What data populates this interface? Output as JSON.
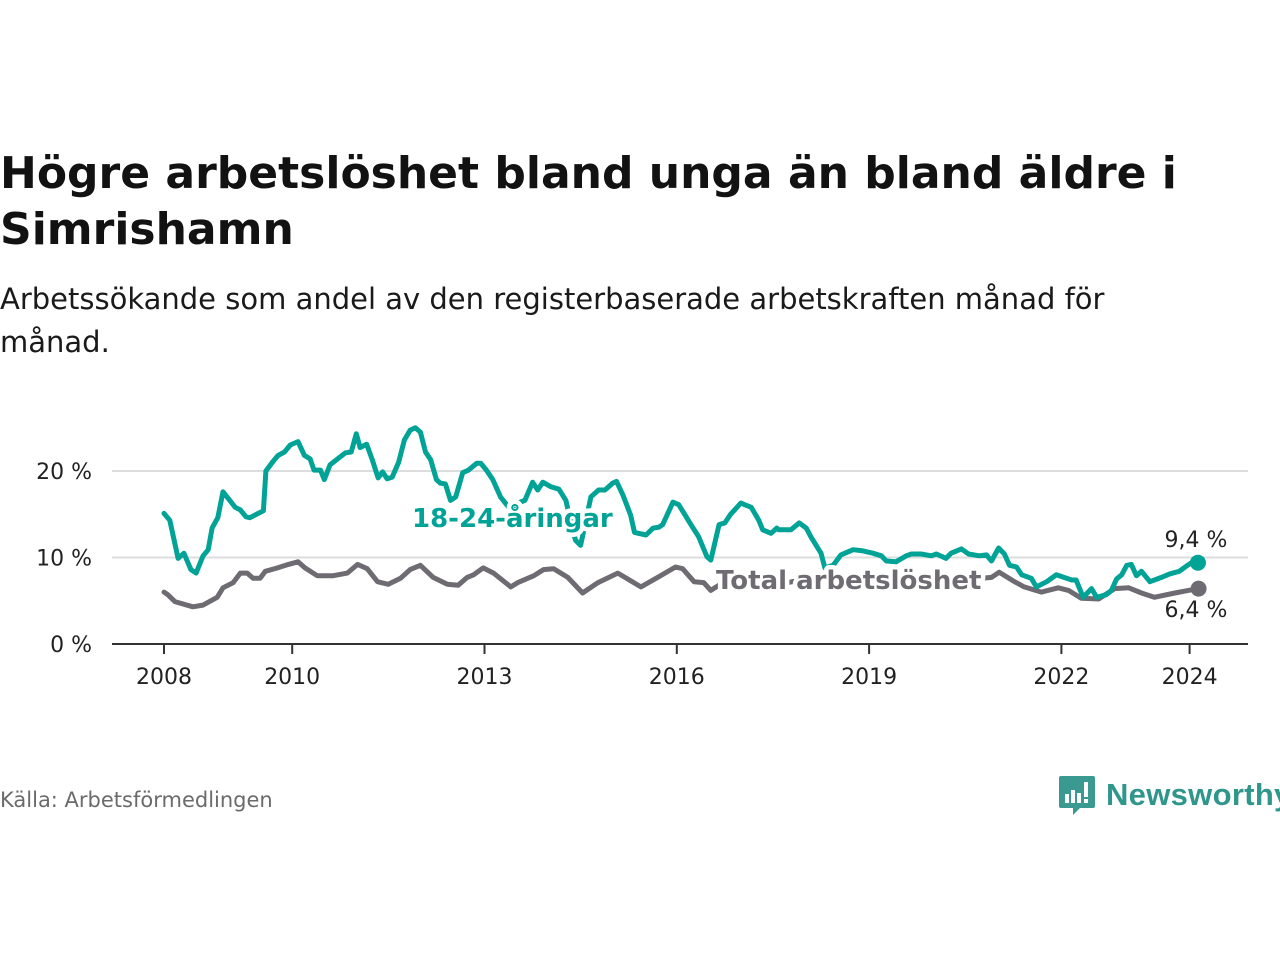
{
  "title": "Högre arbetslöshet bland unga än bland äldre i Simrishamn",
  "subtitle": "Arbetssökande som andel av den registerbaserade arbetskraften månad för månad.",
  "source": "Källa: Arbetsförmedlingen",
  "logo": {
    "text": "Newsworthy"
  },
  "colors": {
    "youth": "#00a396",
    "total": "#6e6b73",
    "grid": "#dddddd",
    "axis": "#333333"
  },
  "chart_data": {
    "type": "line",
    "title": "Högre arbetslöshet bland unga än bland äldre i Simrishamn",
    "xlabel": "",
    "ylabel": "",
    "xlim": [
      2008,
      2024.6
    ],
    "ylim": [
      0,
      25
    ],
    "x_ticks": [
      2008,
      2010,
      2013,
      2016,
      2019,
      2022,
      2024
    ],
    "x_tick_labels": [
      "2008",
      "2010",
      "2013",
      "2016",
      "2019",
      "2022",
      "2024"
    ],
    "y_ticks": [
      0,
      10,
      20
    ],
    "y_tick_labels": [
      "0 %",
      "10 %",
      "20 %"
    ],
    "grid": true,
    "series": [
      {
        "name": "18-24-åringar",
        "end_label": "9,4 %",
        "points": [
          [
            2008.0,
            15.1
          ],
          [
            2008.09,
            14.3
          ],
          [
            2008.22,
            9.9
          ],
          [
            2008.31,
            10.5
          ],
          [
            2008.42,
            8.6
          ],
          [
            2008.5,
            8.2
          ],
          [
            2008.61,
            10.2
          ],
          [
            2008.69,
            10.9
          ],
          [
            2008.75,
            13.4
          ],
          [
            2008.84,
            14.6
          ],
          [
            2008.92,
            17.6
          ],
          [
            2009.11,
            15.8
          ],
          [
            2009.19,
            15.5
          ],
          [
            2009.28,
            14.7
          ],
          [
            2009.34,
            14.6
          ],
          [
            2009.47,
            15.1
          ],
          [
            2009.55,
            15.4
          ],
          [
            2009.59,
            20.0
          ],
          [
            2009.69,
            21.0
          ],
          [
            2009.78,
            21.8
          ],
          [
            2009.88,
            22.2
          ],
          [
            2009.97,
            23.0
          ],
          [
            2010.09,
            23.4
          ],
          [
            2010.19,
            21.8
          ],
          [
            2010.28,
            21.4
          ],
          [
            2010.34,
            20.1
          ],
          [
            2010.44,
            20.1
          ],
          [
            2010.5,
            19.0
          ],
          [
            2010.59,
            20.7
          ],
          [
            2010.83,
            22.1
          ],
          [
            2010.92,
            22.2
          ],
          [
            2011.0,
            24.3
          ],
          [
            2011.06,
            22.7
          ],
          [
            2011.16,
            23.1
          ],
          [
            2011.25,
            21.3
          ],
          [
            2011.34,
            19.2
          ],
          [
            2011.41,
            19.9
          ],
          [
            2011.48,
            19.1
          ],
          [
            2011.56,
            19.3
          ],
          [
            2011.66,
            21.0
          ],
          [
            2011.75,
            23.6
          ],
          [
            2011.84,
            24.7
          ],
          [
            2011.92,
            25.0
          ],
          [
            2012.0,
            24.5
          ],
          [
            2012.08,
            22.2
          ],
          [
            2012.16,
            21.3
          ],
          [
            2012.25,
            19.0
          ],
          [
            2012.31,
            18.6
          ],
          [
            2012.39,
            18.5
          ],
          [
            2012.47,
            16.6
          ],
          [
            2012.55,
            17.0
          ],
          [
            2012.66,
            19.8
          ],
          [
            2012.75,
            20.1
          ],
          [
            2012.88,
            20.9
          ],
          [
            2012.94,
            20.9
          ],
          [
            2013.03,
            20.1
          ],
          [
            2013.13,
            19.0
          ],
          [
            2013.25,
            17.0
          ],
          [
            2013.41,
            15.5
          ],
          [
            2013.56,
            16.4
          ],
          [
            2013.63,
            16.6
          ],
          [
            2013.75,
            18.7
          ],
          [
            2013.83,
            17.8
          ],
          [
            2013.91,
            18.7
          ],
          [
            2014.03,
            18.2
          ],
          [
            2014.16,
            17.9
          ],
          [
            2014.27,
            16.6
          ],
          [
            2014.34,
            14.3
          ],
          [
            2014.42,
            12.0
          ],
          [
            2014.5,
            11.4
          ],
          [
            2014.66,
            17.0
          ],
          [
            2014.78,
            17.8
          ],
          [
            2014.88,
            17.8
          ],
          [
            2015.0,
            18.6
          ],
          [
            2015.06,
            18.8
          ],
          [
            2015.16,
            17.2
          ],
          [
            2015.28,
            14.9
          ],
          [
            2015.34,
            12.9
          ],
          [
            2015.52,
            12.6
          ],
          [
            2015.63,
            13.4
          ],
          [
            2015.72,
            13.5
          ],
          [
            2015.78,
            13.8
          ],
          [
            2015.94,
            16.4
          ],
          [
            2016.03,
            16.1
          ],
          [
            2016.13,
            14.9
          ],
          [
            2016.22,
            13.8
          ],
          [
            2016.34,
            12.4
          ],
          [
            2016.47,
            10.1
          ],
          [
            2016.53,
            9.7
          ],
          [
            2016.66,
            13.8
          ],
          [
            2016.75,
            14.0
          ],
          [
            2016.84,
            15.0
          ],
          [
            2017.0,
            16.3
          ],
          [
            2017.06,
            16.1
          ],
          [
            2017.16,
            15.8
          ],
          [
            2017.28,
            14.3
          ],
          [
            2017.34,
            13.2
          ],
          [
            2017.47,
            12.8
          ],
          [
            2017.56,
            13.4
          ],
          [
            2017.59,
            13.2
          ],
          [
            2017.78,
            13.2
          ],
          [
            2017.91,
            14.0
          ],
          [
            2018.02,
            13.4
          ],
          [
            2018.09,
            12.4
          ],
          [
            2018.19,
            11.2
          ],
          [
            2018.25,
            10.5
          ],
          [
            2018.31,
            8.8
          ],
          [
            2018.44,
            9.1
          ],
          [
            2018.56,
            10.3
          ],
          [
            2018.75,
            10.9
          ],
          [
            2018.88,
            10.8
          ],
          [
            2019.06,
            10.5
          ],
          [
            2019.19,
            10.2
          ],
          [
            2019.27,
            9.6
          ],
          [
            2019.42,
            9.5
          ],
          [
            2019.58,
            10.2
          ],
          [
            2019.66,
            10.4
          ],
          [
            2019.81,
            10.4
          ],
          [
            2019.97,
            10.2
          ],
          [
            2020.05,
            10.4
          ],
          [
            2020.2,
            9.9
          ],
          [
            2020.28,
            10.5
          ],
          [
            2020.44,
            11.0
          ],
          [
            2020.55,
            10.4
          ],
          [
            2020.72,
            10.2
          ],
          [
            2020.83,
            10.3
          ],
          [
            2020.91,
            9.6
          ],
          [
            2021.02,
            11.1
          ],
          [
            2021.11,
            10.4
          ],
          [
            2021.19,
            9.1
          ],
          [
            2021.3,
            8.9
          ],
          [
            2021.38,
            8.0
          ],
          [
            2021.53,
            7.6
          ],
          [
            2021.61,
            6.6
          ],
          [
            2021.77,
            7.2
          ],
          [
            2021.92,
            8.0
          ],
          [
            2022.16,
            7.4
          ],
          [
            2022.23,
            7.4
          ],
          [
            2022.34,
            5.4
          ],
          [
            2022.47,
            6.4
          ],
          [
            2022.55,
            5.4
          ],
          [
            2022.7,
            5.7
          ],
          [
            2022.78,
            6.2
          ],
          [
            2022.86,
            7.5
          ],
          [
            2022.94,
            8.0
          ],
          [
            2023.02,
            9.1
          ],
          [
            2023.09,
            9.2
          ],
          [
            2023.17,
            7.9
          ],
          [
            2023.25,
            8.4
          ],
          [
            2023.38,
            7.2
          ],
          [
            2023.56,
            7.7
          ],
          [
            2023.69,
            8.1
          ],
          [
            2023.84,
            8.4
          ],
          [
            2023.95,
            9.0
          ],
          [
            2024.03,
            9.4
          ],
          [
            2024.13,
            9.4
          ]
        ]
      },
      {
        "name": "Total arbetslöshet",
        "end_label": "6,4 %",
        "points": [
          [
            2008.0,
            6.0
          ],
          [
            2008.06,
            5.7
          ],
          [
            2008.17,
            4.9
          ],
          [
            2008.45,
            4.3
          ],
          [
            2008.61,
            4.5
          ],
          [
            2008.83,
            5.4
          ],
          [
            2008.92,
            6.5
          ],
          [
            2009.08,
            7.1
          ],
          [
            2009.19,
            8.2
          ],
          [
            2009.3,
            8.2
          ],
          [
            2009.39,
            7.6
          ],
          [
            2009.5,
            7.6
          ],
          [
            2009.58,
            8.4
          ],
          [
            2009.77,
            8.8
          ],
          [
            2009.94,
            9.2
          ],
          [
            2010.09,
            9.5
          ],
          [
            2010.2,
            8.8
          ],
          [
            2010.39,
            7.9
          ],
          [
            2010.64,
            7.9
          ],
          [
            2010.86,
            8.2
          ],
          [
            2011.02,
            9.2
          ],
          [
            2011.17,
            8.7
          ],
          [
            2011.33,
            7.2
          ],
          [
            2011.5,
            6.9
          ],
          [
            2011.69,
            7.6
          ],
          [
            2011.84,
            8.6
          ],
          [
            2012.0,
            9.1
          ],
          [
            2012.2,
            7.7
          ],
          [
            2012.42,
            6.9
          ],
          [
            2012.59,
            6.8
          ],
          [
            2012.73,
            7.7
          ],
          [
            2012.83,
            8.0
          ],
          [
            2012.98,
            8.8
          ],
          [
            2013.14,
            8.2
          ],
          [
            2013.41,
            6.6
          ],
          [
            2013.52,
            7.1
          ],
          [
            2013.77,
            7.9
          ],
          [
            2013.92,
            8.6
          ],
          [
            2014.08,
            8.7
          ],
          [
            2014.3,
            7.7
          ],
          [
            2014.53,
            5.9
          ],
          [
            2014.77,
            7.1
          ],
          [
            2015.08,
            8.2
          ],
          [
            2015.44,
            6.6
          ],
          [
            2015.7,
            7.7
          ],
          [
            2015.98,
            8.9
          ],
          [
            2016.09,
            8.7
          ],
          [
            2016.27,
            7.2
          ],
          [
            2016.42,
            7.1
          ],
          [
            2016.53,
            6.2
          ],
          [
            2016.7,
            7.0
          ],
          [
            2017.0,
            7.8
          ],
          [
            2017.3,
            7.2
          ],
          [
            2017.6,
            6.9
          ],
          [
            2018.0,
            7.5
          ],
          [
            2018.3,
            6.8
          ],
          [
            2018.6,
            6.6
          ],
          [
            2019.0,
            7.2
          ],
          [
            2019.3,
            6.6
          ],
          [
            2019.6,
            6.8
          ],
          [
            2020.0,
            7.3
          ],
          [
            2020.3,
            6.9
          ],
          [
            2020.6,
            7.5
          ],
          [
            2020.91,
            7.7
          ],
          [
            2021.03,
            8.3
          ],
          [
            2021.27,
            7.2
          ],
          [
            2021.42,
            6.6
          ],
          [
            2021.69,
            6.0
          ],
          [
            2021.95,
            6.5
          ],
          [
            2022.11,
            6.2
          ],
          [
            2022.31,
            5.3
          ],
          [
            2022.58,
            5.2
          ],
          [
            2022.83,
            6.4
          ],
          [
            2023.05,
            6.5
          ],
          [
            2023.25,
            5.9
          ],
          [
            2023.45,
            5.4
          ],
          [
            2023.77,
            5.9
          ],
          [
            2023.98,
            6.2
          ],
          [
            2024.14,
            6.4
          ]
        ]
      }
    ],
    "legend": "inline-labels"
  }
}
